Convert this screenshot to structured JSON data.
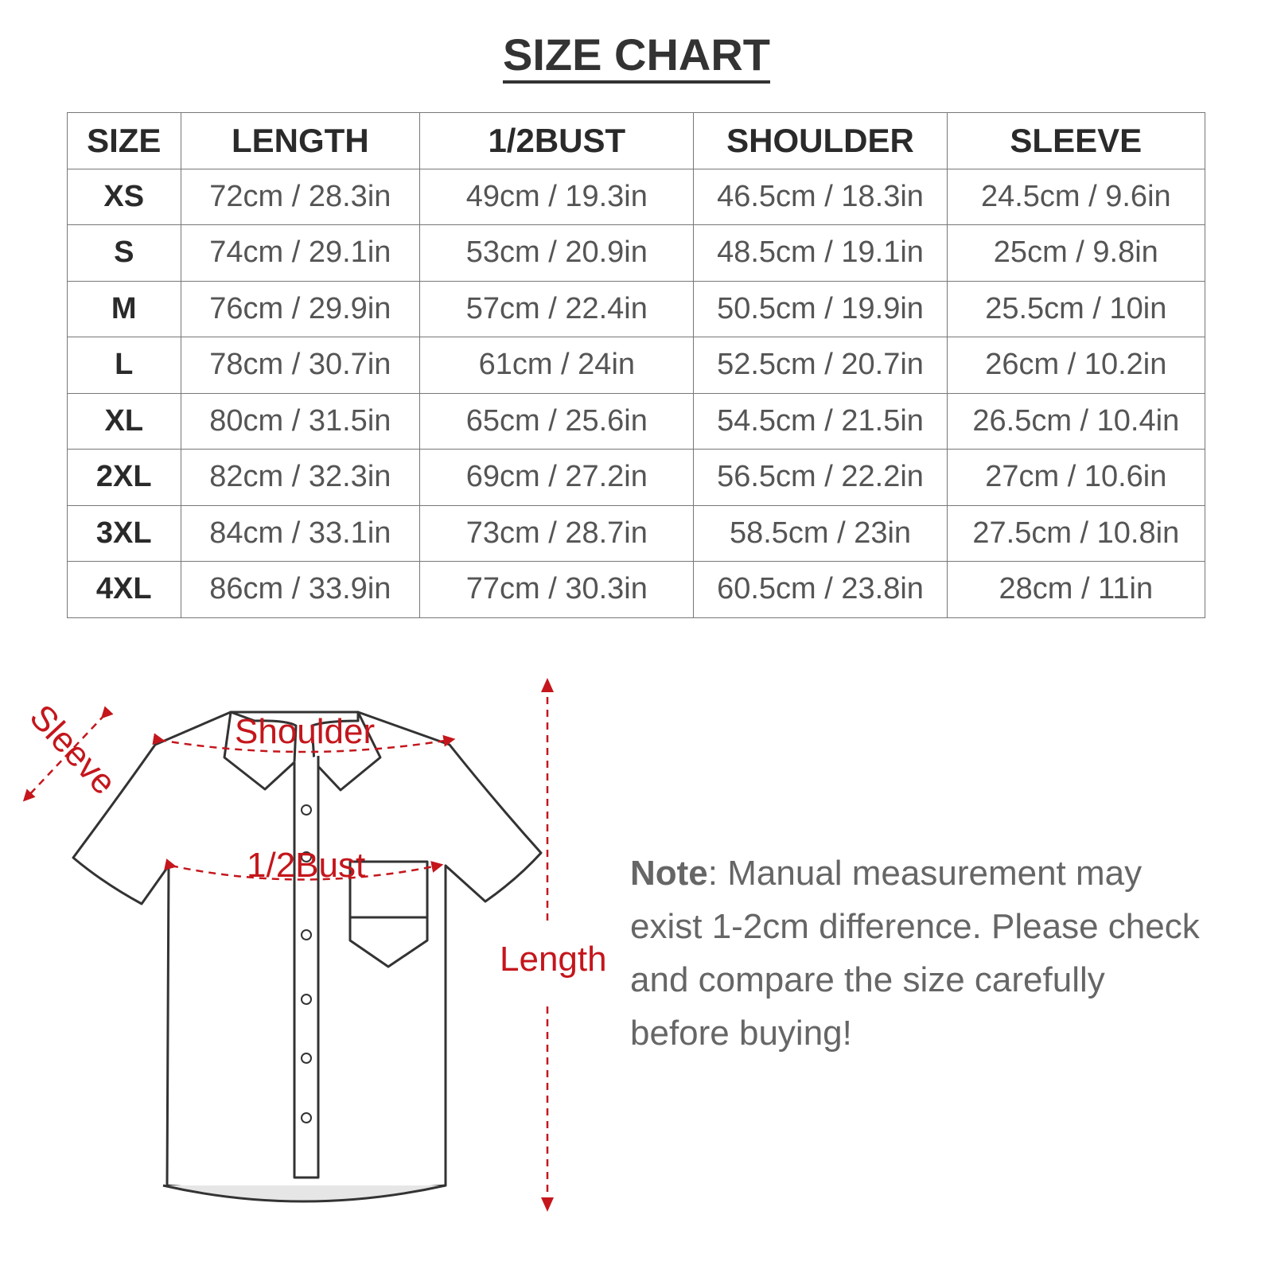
{
  "title": "SIZE CHART",
  "table": {
    "headers": [
      "SIZE",
      "LENGTH",
      "1/2BUST",
      "SHOULDER",
      "SLEEVE"
    ],
    "rows": [
      [
        "XS",
        "72cm / 28.3in",
        "49cm / 19.3in",
        "46.5cm / 18.3in",
        "24.5cm / 9.6in"
      ],
      [
        "S",
        "74cm / 29.1in",
        "53cm / 20.9in",
        "48.5cm / 19.1in",
        "25cm / 9.8in"
      ],
      [
        "M",
        "76cm / 29.9in",
        "57cm / 22.4in",
        "50.5cm / 19.9in",
        "25.5cm / 10in"
      ],
      [
        "L",
        "78cm / 30.7in",
        "61cm / 24in",
        "52.5cm / 20.7in",
        "26cm / 10.2in"
      ],
      [
        "XL",
        "80cm / 31.5in",
        "65cm / 25.6in",
        "54.5cm / 21.5in",
        "26.5cm / 10.4in"
      ],
      [
        "2XL",
        "82cm / 32.3in",
        "69cm / 27.2in",
        "56.5cm / 22.2in",
        "27cm / 10.6in"
      ],
      [
        "3XL",
        "84cm / 33.1in",
        "73cm / 28.7in",
        "58.5cm / 23in",
        "27.5cm / 10.8in"
      ],
      [
        "4XL",
        "86cm / 33.9in",
        "77cm / 30.3in",
        "60.5cm / 23.8in",
        "28cm / 11in"
      ]
    ]
  },
  "diagram": {
    "labels": {
      "sleeve": "Sleeve",
      "shoulder": "Shoulder",
      "bust": "1/2Bust",
      "length": "Length"
    },
    "accent_color": "#c4161c"
  },
  "note": {
    "label": "Note",
    "text": ": Manual measurement may exist 1-2cm difference. Please check and compare the size carefully before buying!"
  }
}
